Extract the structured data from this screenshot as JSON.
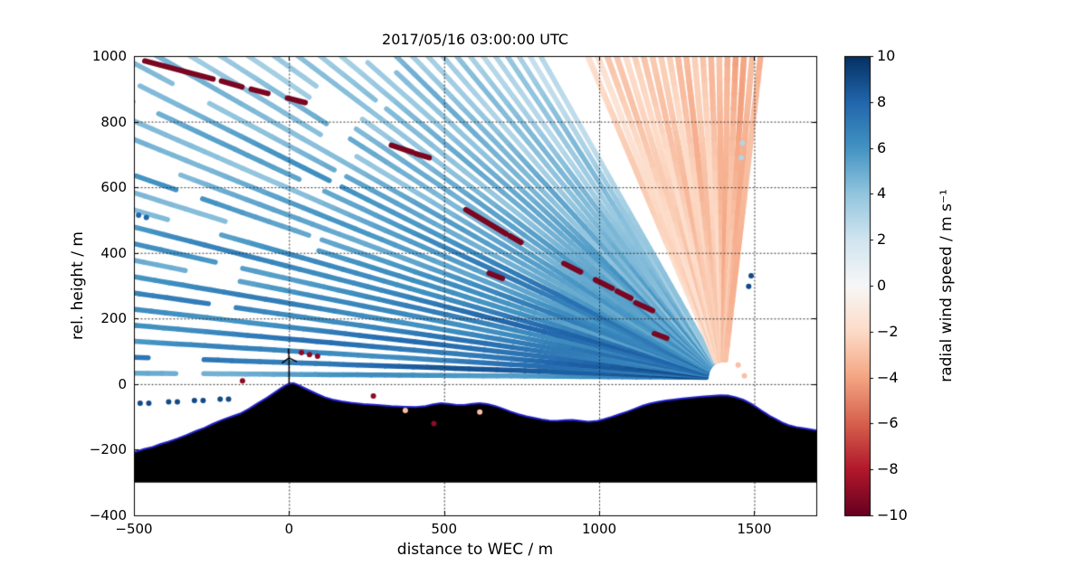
{
  "chart_data": {
    "type": "scatter",
    "description": "Doppler lidar RHI scan of radial wind speed over terrain; fan of beams converges at the lidar location on the right hill; black terrain silhouette with blue outline; wind turbine (WEC) at x=0.",
    "title": "2017/05/16 03:00:00 UTC",
    "xlabel": "distance to WEC / m",
    "ylabel": "rel. height / m",
    "xlim": [
      -500,
      1700
    ],
    "ylim": [
      -400,
      1000
    ],
    "x_ticks": [
      -500,
      0,
      500,
      1000,
      1500
    ],
    "y_ticks": [
      -400,
      -200,
      0,
      200,
      400,
      600,
      800,
      1000
    ],
    "grid": "dotted",
    "colorbar": {
      "label": "radial wind speed / m s⁻¹",
      "ticks": [
        -10,
        -8,
        -6,
        -4,
        -2,
        0,
        2,
        4,
        6,
        8,
        10
      ],
      "vmin": -10,
      "vmax": 10,
      "colormap": "RdBu",
      "stops": [
        [
          -10,
          "#67001f"
        ],
        [
          -8,
          "#b2182b"
        ],
        [
          -6,
          "#d6604d"
        ],
        [
          -4,
          "#f4a582"
        ],
        [
          -2,
          "#fddbc7"
        ],
        [
          0,
          "#f7f7f7"
        ],
        [
          2,
          "#d1e5f0"
        ],
        [
          4,
          "#92c5de"
        ],
        [
          6,
          "#4393c3"
        ],
        [
          8,
          "#2166ac"
        ],
        [
          10,
          "#053061"
        ]
      ]
    },
    "scanner": {
      "x": 1400,
      "y": 20
    },
    "beam_fans": [
      {
        "name": "main-blue-fan",
        "angle_start": 0.4,
        "angle_end": 59,
        "count": 41,
        "v_near": [
          8.5,
          4.5
        ],
        "v_far": [
          6.0,
          1.5
        ],
        "width": 5.5
      },
      {
        "name": "vertical-orange-fan",
        "angle_start": 66,
        "angle_end": 97,
        "count": 21,
        "v_near": [
          -1.8,
          -2.8
        ],
        "v_far": [
          -2.5,
          -4.5
        ],
        "width": 6.5
      }
    ],
    "hard_target_streaks": [
      [
        -465,
        985,
        -245,
        930
      ],
      [
        -218,
        924,
        -152,
        906
      ],
      [
        -122,
        899,
        -68,
        886
      ],
      [
        -5,
        872,
        52,
        858
      ],
      [
        330,
        728,
        398,
        707
      ],
      [
        408,
        703,
        452,
        690
      ],
      [
        570,
        532,
        700,
        458
      ],
      [
        712,
        452,
        748,
        432
      ],
      [
        886,
        368,
        940,
        342
      ],
      [
        988,
        318,
        1042,
        292
      ],
      [
        1058,
        283,
        1102,
        262
      ],
      [
        1118,
        248,
        1172,
        224
      ],
      [
        645,
        338,
        688,
        322
      ],
      [
        1178,
        154,
        1218,
        140
      ]
    ],
    "streak_value": -9.5,
    "scatter_dots": [
      [
        -480,
        -58,
        9
      ],
      [
        -452,
        -58,
        9
      ],
      [
        -388,
        -54,
        9
      ],
      [
        -360,
        -54,
        9
      ],
      [
        -305,
        -50,
        9
      ],
      [
        -277,
        -50,
        9
      ],
      [
        -222,
        -46,
        9
      ],
      [
        -195,
        -46,
        9
      ],
      [
        -485,
        515,
        8
      ],
      [
        -460,
        508,
        8
      ],
      [
        -150,
        10,
        -9
      ],
      [
        272,
        -36,
        -9
      ],
      [
        467,
        -120,
        -9
      ],
      [
        40,
        96,
        -9
      ],
      [
        66,
        90,
        -9
      ],
      [
        92,
        85,
        -9
      ],
      [
        1482,
        298,
        9
      ],
      [
        1490,
        330,
        9
      ],
      [
        1458,
        690,
        3
      ],
      [
        1462,
        735,
        3
      ],
      [
        1448,
        58,
        -3
      ],
      [
        1468,
        25,
        -3
      ],
      [
        375,
        -80,
        -3
      ],
      [
        615,
        -85,
        -3
      ]
    ],
    "terrain": {
      "fill": "#000000",
      "outline": "#2222cc",
      "base": -300,
      "profile": [
        [
          -500,
          -208
        ],
        [
          -468,
          -198
        ],
        [
          -440,
          -192
        ],
        [
          -415,
          -183
        ],
        [
          -390,
          -176
        ],
        [
          -360,
          -166
        ],
        [
          -330,
          -155
        ],
        [
          -300,
          -143
        ],
        [
          -272,
          -133
        ],
        [
          -245,
          -121
        ],
        [
          -215,
          -109
        ],
        [
          -185,
          -99
        ],
        [
          -158,
          -90
        ],
        [
          -130,
          -76
        ],
        [
          -100,
          -58
        ],
        [
          -72,
          -42
        ],
        [
          -48,
          -27
        ],
        [
          -28,
          -14
        ],
        [
          -12,
          -4
        ],
        [
          0,
          1
        ],
        [
          14,
          3
        ],
        [
          28,
          -2
        ],
        [
          45,
          -10
        ],
        [
          65,
          -19
        ],
        [
          90,
          -30
        ],
        [
          115,
          -40
        ],
        [
          140,
          -47
        ],
        [
          170,
          -53
        ],
        [
          200,
          -57
        ],
        [
          240,
          -61
        ],
        [
          285,
          -64
        ],
        [
          330,
          -67
        ],
        [
          375,
          -69
        ],
        [
          410,
          -70
        ],
        [
          440,
          -67
        ],
        [
          465,
          -62
        ],
        [
          490,
          -58
        ],
        [
          515,
          -60
        ],
        [
          540,
          -64
        ],
        [
          565,
          -64
        ],
        [
          590,
          -60
        ],
        [
          615,
          -58
        ],
        [
          640,
          -61
        ],
        [
          665,
          -67
        ],
        [
          690,
          -75
        ],
        [
          715,
          -84
        ],
        [
          740,
          -92
        ],
        [
          765,
          -98
        ],
        [
          790,
          -103
        ],
        [
          815,
          -108
        ],
        [
          840,
          -111
        ],
        [
          865,
          -112
        ],
        [
          890,
          -110
        ],
        [
          915,
          -109
        ],
        [
          940,
          -112
        ],
        [
          965,
          -115
        ],
        [
          990,
          -113
        ],
        [
          1015,
          -107
        ],
        [
          1040,
          -100
        ],
        [
          1065,
          -92
        ],
        [
          1090,
          -84
        ],
        [
          1115,
          -75
        ],
        [
          1140,
          -66
        ],
        [
          1165,
          -59
        ],
        [
          1190,
          -54
        ],
        [
          1215,
          -50
        ],
        [
          1240,
          -47
        ],
        [
          1270,
          -44
        ],
        [
          1300,
          -41
        ],
        [
          1330,
          -38
        ],
        [
          1360,
          -36
        ],
        [
          1390,
          -34
        ],
        [
          1415,
          -35
        ],
        [
          1440,
          -40
        ],
        [
          1465,
          -48
        ],
        [
          1490,
          -60
        ],
        [
          1510,
          -72
        ],
        [
          1530,
          -85
        ],
        [
          1550,
          -97
        ],
        [
          1570,
          -107
        ],
        [
          1590,
          -117
        ],
        [
          1610,
          -125
        ],
        [
          1635,
          -131
        ],
        [
          1660,
          -135
        ],
        [
          1700,
          -141
        ]
      ]
    },
    "turbine": {
      "x": 0,
      "base_y": 0,
      "hub_height": 80,
      "rotor_radius": 28
    }
  }
}
